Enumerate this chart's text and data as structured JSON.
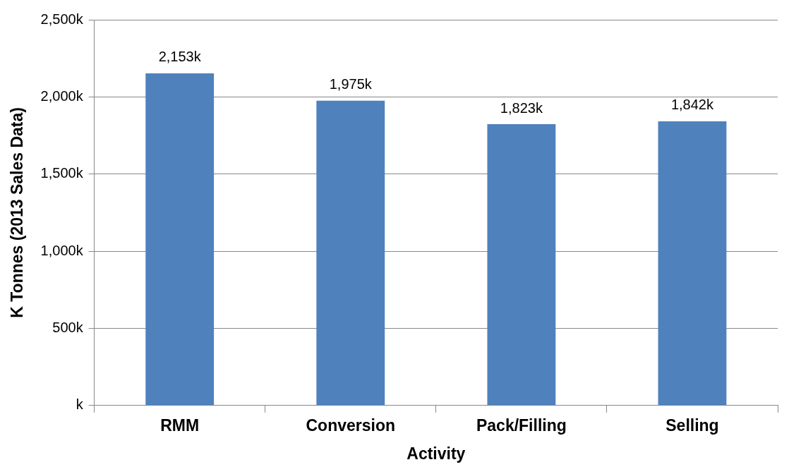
{
  "chart_data": {
    "type": "bar",
    "xlabel": "Activity",
    "ylabel": "K Tonnes (2013 Sales Data)",
    "categories": [
      "RMM",
      "Conversion",
      "Pack/Filling",
      "Selling"
    ],
    "values": [
      2153,
      1975,
      1823,
      1842
    ],
    "value_labels": [
      "2,153k",
      "1,975k",
      "1,823k",
      "1,842k"
    ],
    "color": "#4f81bd",
    "ylim": [
      0,
      2500
    ],
    "yticks": [
      {
        "value": 0,
        "label": "k"
      },
      {
        "value": 500,
        "label": "500k"
      },
      {
        "value": 1000,
        "label": "1,000k"
      },
      {
        "value": 1500,
        "label": "1,500k"
      },
      {
        "value": 2000,
        "label": "2,000k"
      },
      {
        "value": 2500,
        "label": "2,500k"
      }
    ],
    "grid": "y",
    "legend": false
  }
}
